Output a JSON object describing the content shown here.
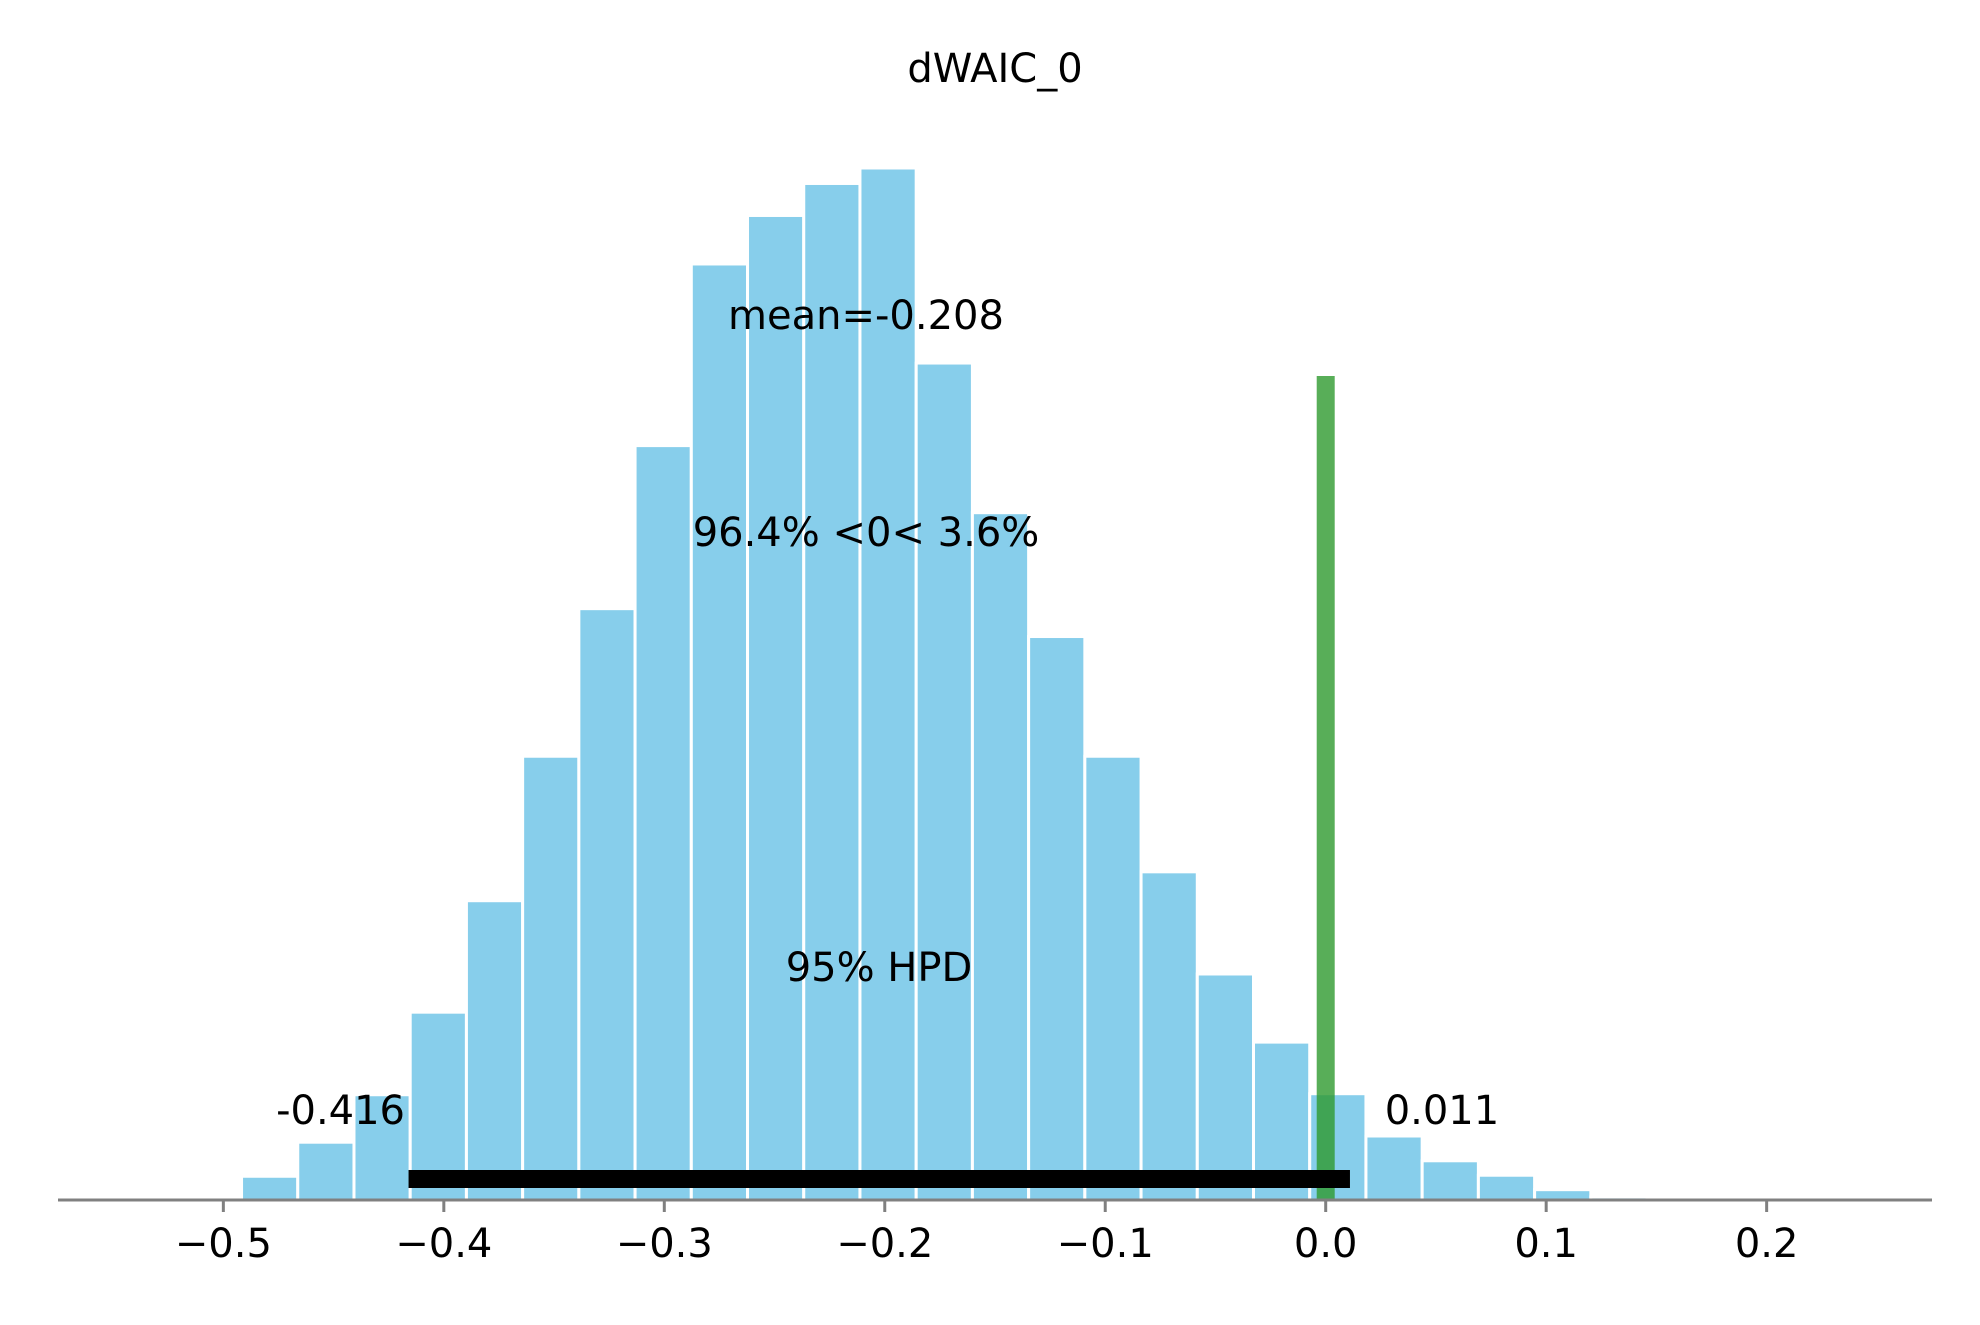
{
  "chart_data": {
    "type": "bar",
    "title": "dWAIC_0",
    "xlabel": "",
    "ylabel": "",
    "xlim": [
      -0.575,
      0.275
    ],
    "x_ticks": [
      {
        "value": -0.5,
        "label": "−0.5"
      },
      {
        "value": -0.4,
        "label": "−0.4"
      },
      {
        "value": -0.3,
        "label": "−0.3"
      },
      {
        "value": -0.2,
        "label": "−0.2"
      },
      {
        "value": -0.1,
        "label": "−0.1"
      },
      {
        "value": 0.0,
        "label": "0.0"
      },
      {
        "value": 0.1,
        "label": "0.1"
      },
      {
        "value": 0.2,
        "label": "0.2"
      }
    ],
    "bin_width": 0.0255,
    "bins": [
      {
        "x": -0.5045,
        "count": 0.2
      },
      {
        "x": -0.479,
        "count": 2.3
      },
      {
        "x": -0.4535,
        "count": 5.6
      },
      {
        "x": -0.428,
        "count": 10.2
      },
      {
        "x": -0.4025,
        "count": 18.2
      },
      {
        "x": -0.377,
        "count": 29.0
      },
      {
        "x": -0.3515,
        "count": 43.0
      },
      {
        "x": -0.326,
        "count": 57.3
      },
      {
        "x": -0.3005,
        "count": 73.1
      },
      {
        "x": -0.275,
        "count": 90.7
      },
      {
        "x": -0.2495,
        "count": 95.4
      },
      {
        "x": -0.224,
        "count": 98.5
      },
      {
        "x": -0.1985,
        "count": 100.0
      },
      {
        "x": -0.173,
        "count": 81.1
      },
      {
        "x": -0.1475,
        "count": 66.6
      },
      {
        "x": -0.122,
        "count": 54.6
      },
      {
        "x": -0.0965,
        "count": 43.0
      },
      {
        "x": -0.071,
        "count": 31.8
      },
      {
        "x": -0.0455,
        "count": 21.9
      },
      {
        "x": -0.02,
        "count": 15.3
      },
      {
        "x": 0.0055,
        "count": 10.3
      },
      {
        "x": 0.031,
        "count": 6.2
      },
      {
        "x": 0.0565,
        "count": 3.8
      },
      {
        "x": 0.082,
        "count": 2.4
      },
      {
        "x": 0.1075,
        "count": 1.0
      },
      {
        "x": 0.133,
        "count": 0.3
      },
      {
        "x": 0.1585,
        "count": 0.1
      }
    ],
    "bar_color": "#87ceeb",
    "reference_value": 0.0,
    "reference_line_color": "#2e9a2e",
    "hpd": {
      "low": -0.416,
      "high": 0.011,
      "low_label": "-0.416",
      "high_label": "0.011",
      "label": "95% HPD"
    },
    "mean_label": "mean=-0.208",
    "ref_text": "96.4% <0< 3.6%",
    "grid": false,
    "legend": "none"
  }
}
